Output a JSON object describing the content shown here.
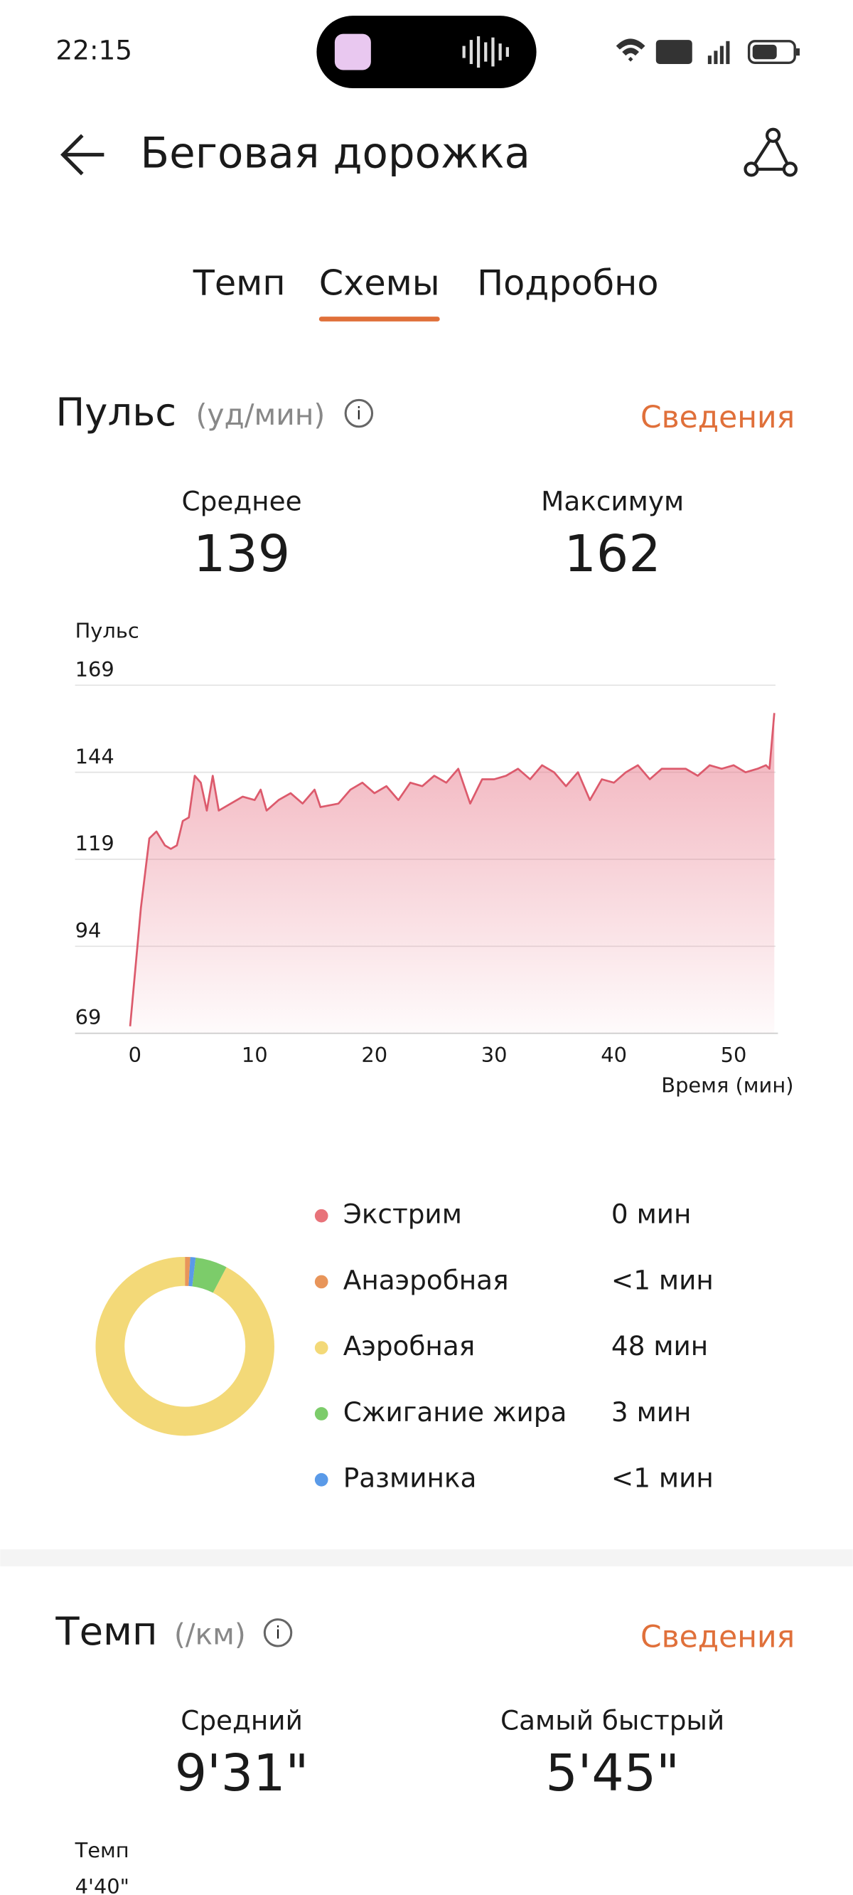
{
  "status_bar": {
    "time": "22:15"
  },
  "header": {
    "title": "Беговая дорожка"
  },
  "tabs": {
    "items": [
      "Темп",
      "Схемы",
      "Подробно"
    ],
    "active": 1
  },
  "pulse": {
    "title": "Пульс",
    "unit": "(уд/мин)",
    "link": "Сведения",
    "stats": [
      {
        "label": "Среднее",
        "value": 139
      },
      {
        "label": "Максимум",
        "value": 162
      }
    ],
    "chart": {
      "type": "line",
      "y_label": "Пульс",
      "x_label": "Время (мин)",
      "color": "#dc5a6c",
      "ylim": [
        69,
        169
      ],
      "yticks": [
        69,
        94,
        119,
        144,
        169
      ],
      "xlim": [
        -5,
        53.5
      ],
      "xticks": [
        0,
        10,
        20,
        30,
        40,
        50
      ],
      "x": [
        -0.4,
        0.5,
        1.2,
        1.8,
        2.5,
        3,
        3.5,
        4,
        4.5,
        5,
        5.5,
        6,
        6.5,
        7,
        8,
        9,
        10,
        10.5,
        11,
        12,
        13,
        14,
        15,
        15.5,
        17,
        18,
        19,
        20,
        21,
        22,
        23,
        24,
        25,
        26,
        27,
        28,
        29,
        30,
        31,
        32,
        33,
        34,
        35,
        36,
        37,
        38,
        39,
        40,
        41,
        42,
        43,
        44,
        45,
        46,
        47,
        48,
        49,
        50,
        51,
        52,
        52.7,
        53,
        53.4
      ],
      "values": [
        71,
        105,
        125,
        127,
        123,
        122,
        123,
        130,
        131,
        143,
        141,
        133,
        143,
        133,
        135,
        137,
        136,
        139,
        133,
        136,
        138,
        135,
        139,
        134,
        135,
        139,
        141,
        138,
        140,
        136,
        141,
        140,
        143,
        141,
        145,
        135,
        142,
        142,
        143,
        145,
        142,
        146,
        144,
        140,
        144,
        136,
        142,
        141,
        144,
        146,
        142,
        145,
        145,
        145,
        143,
        146,
        145,
        146,
        144,
        145,
        146,
        145,
        161
      ]
    }
  },
  "zones": {
    "type": "pie",
    "categories": [
      "Экстрим",
      "Анаэробная",
      "Аэробная",
      "Сжигание жира",
      "Разминка"
    ],
    "values": [
      0,
      0.5,
      48,
      3,
      0.5
    ],
    "value_labels": [
      "0 мин",
      "<1 мин",
      "48 мин",
      "3 мин",
      "<1 мин"
    ],
    "colors": [
      "#e8737a",
      "#e8955a",
      "#f3d978",
      "#7ccc6a",
      "#5a9ae8"
    ]
  },
  "pace": {
    "title": "Темп",
    "unit": "(/км)",
    "link": "Сведения",
    "stats": [
      {
        "label": "Средний",
        "value": "9'31\""
      },
      {
        "label": "Самый быстрый",
        "value": "5'45\""
      }
    ],
    "chart": {
      "y_label": "Темп",
      "first_tick": "4'40\""
    }
  }
}
